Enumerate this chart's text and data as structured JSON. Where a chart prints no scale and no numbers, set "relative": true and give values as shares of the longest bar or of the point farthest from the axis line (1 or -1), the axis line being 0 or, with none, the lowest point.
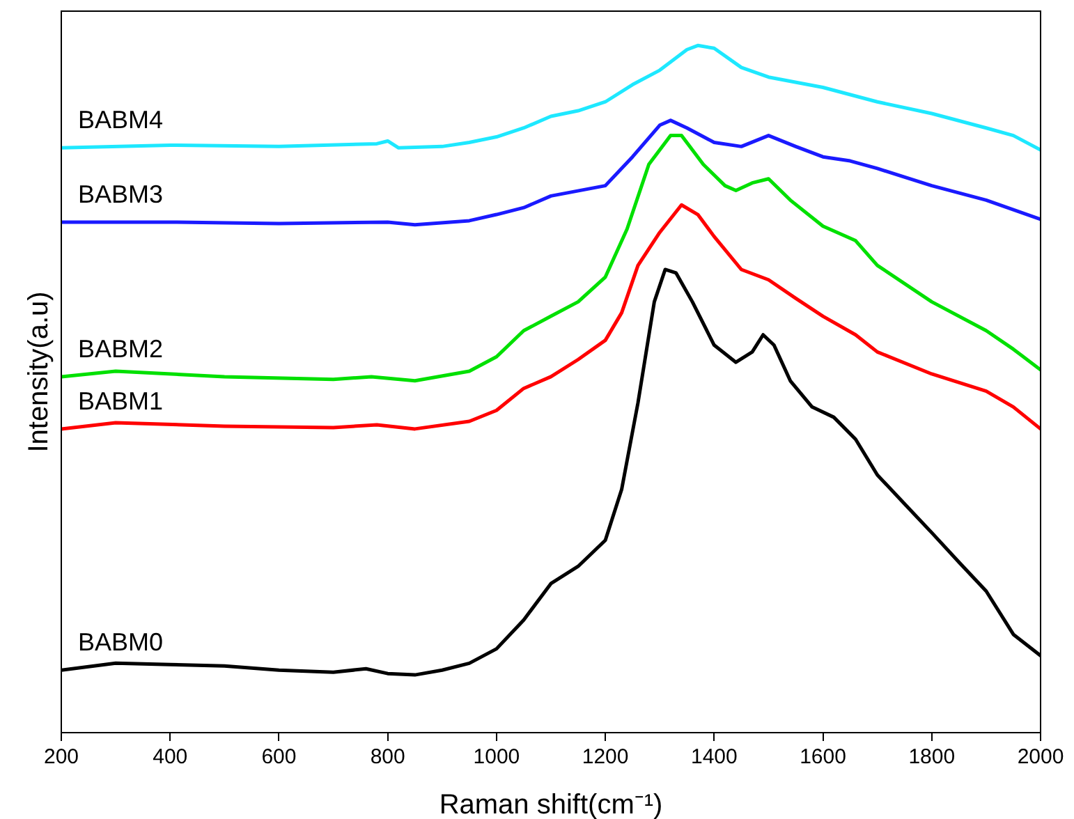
{
  "chart_data": {
    "type": "line",
    "relative": true,
    "xlabel": "Raman shift(cm⁻¹)",
    "ylabel": "Intensity(a.u)",
    "xlim": [
      200,
      2000
    ],
    "xticks": [
      200,
      400,
      600,
      800,
      1000,
      1200,
      1400,
      1600,
      1800,
      2000
    ],
    "marker": "none",
    "line_style": "solid",
    "grid": false,
    "series": [
      {
        "name": "BABM0",
        "color": "#000000",
        "x": [
          200,
          300,
          400,
          500,
          600,
          700,
          760,
          800,
          850,
          900,
          950,
          1000,
          1050,
          1100,
          1150,
          1200,
          1230,
          1260,
          1290,
          1310,
          1330,
          1360,
          1400,
          1440,
          1470,
          1490,
          1510,
          1540,
          1580,
          1620,
          1660,
          1700,
          1750,
          1800,
          1850,
          1900,
          1950,
          2000
        ],
        "values": [
          0.091,
          0.101,
          0.099,
          0.097,
          0.091,
          0.088,
          0.093,
          0.086,
          0.084,
          0.091,
          0.101,
          0.122,
          0.164,
          0.217,
          0.242,
          0.28,
          0.354,
          0.48,
          0.627,
          0.674,
          0.669,
          0.627,
          0.564,
          0.539,
          0.554,
          0.579,
          0.564,
          0.512,
          0.474,
          0.459,
          0.427,
          0.375,
          0.333,
          0.291,
          0.248,
          0.206,
          0.143,
          0.112
        ]
      },
      {
        "name": "BABM1",
        "color": "#ff0000",
        "x": [
          200,
          300,
          500,
          700,
          780,
          850,
          950,
          1000,
          1050,
          1100,
          1150,
          1200,
          1230,
          1260,
          1300,
          1340,
          1370,
          1400,
          1450,
          1500,
          1550,
          1600,
          1660,
          1700,
          1800,
          1900,
          1950,
          2000
        ],
        "values": [
          0.442,
          0.451,
          0.446,
          0.444,
          0.448,
          0.442,
          0.453,
          0.469,
          0.501,
          0.518,
          0.543,
          0.571,
          0.611,
          0.68,
          0.728,
          0.768,
          0.754,
          0.722,
          0.674,
          0.659,
          0.632,
          0.606,
          0.579,
          0.554,
          0.522,
          0.497,
          0.474,
          0.442
        ]
      },
      {
        "name": "BABM2",
        "color": "#00e000",
        "x": [
          200,
          300,
          500,
          700,
          770,
          850,
          950,
          1000,
          1050,
          1100,
          1150,
          1200,
          1240,
          1280,
          1320,
          1340,
          1380,
          1420,
          1440,
          1470,
          1500,
          1540,
          1600,
          1660,
          1700,
          1800,
          1900,
          1950,
          2000
        ],
        "values": [
          0.518,
          0.526,
          0.518,
          0.514,
          0.518,
          0.512,
          0.526,
          0.547,
          0.585,
          0.606,
          0.627,
          0.663,
          0.733,
          0.827,
          0.869,
          0.869,
          0.827,
          0.796,
          0.789,
          0.8,
          0.806,
          0.775,
          0.737,
          0.716,
          0.68,
          0.627,
          0.585,
          0.558,
          0.528
        ]
      },
      {
        "name": "BABM3",
        "color": "#1a1aff",
        "x": [
          200,
          400,
          600,
          800,
          850,
          950,
          1000,
          1050,
          1100,
          1200,
          1250,
          1300,
          1320,
          1350,
          1400,
          1450,
          1500,
          1550,
          1600,
          1650,
          1700,
          1800,
          1900,
          2000
        ],
        "values": [
          0.743,
          0.743,
          0.741,
          0.743,
          0.739,
          0.745,
          0.754,
          0.764,
          0.781,
          0.796,
          0.838,
          0.884,
          0.891,
          0.88,
          0.859,
          0.853,
          0.869,
          0.853,
          0.838,
          0.832,
          0.821,
          0.796,
          0.775,
          0.747
        ]
      },
      {
        "name": "BABM4",
        "color": "#1ee8ff",
        "x": [
          200,
          400,
          600,
          780,
          800,
          820,
          900,
          950,
          1000,
          1050,
          1100,
          1150,
          1200,
          1250,
          1300,
          1350,
          1370,
          1400,
          1450,
          1500,
          1600,
          1700,
          1800,
          1900,
          1950,
          2000
        ],
        "values": [
          0.851,
          0.855,
          0.853,
          0.857,
          0.861,
          0.851,
          0.853,
          0.859,
          0.867,
          0.88,
          0.897,
          0.905,
          0.918,
          0.943,
          0.964,
          0.994,
          1,
          0.996,
          0.968,
          0.954,
          0.939,
          0.918,
          0.901,
          0.88,
          0.869,
          0.848
        ]
      }
    ]
  }
}
